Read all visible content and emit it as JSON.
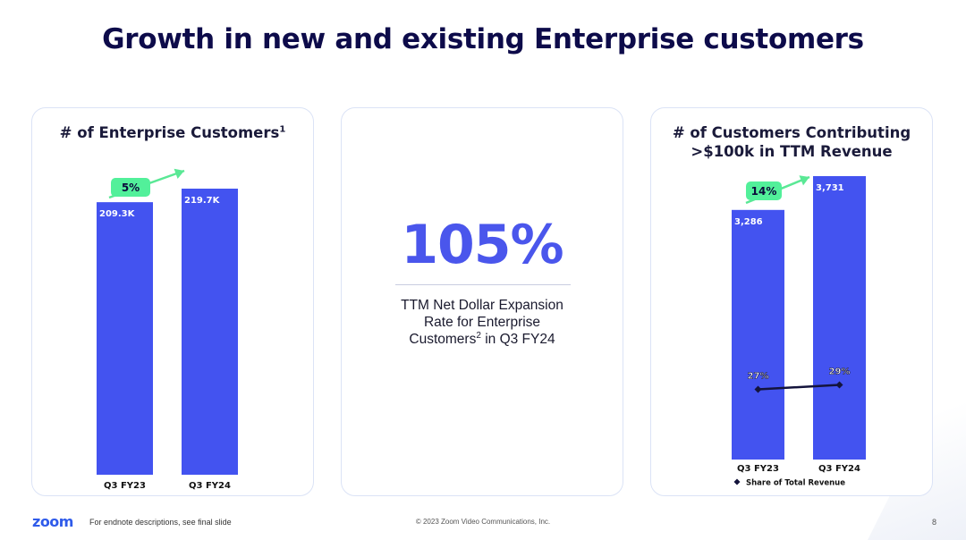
{
  "slide": {
    "title": "Growth in new and existing Enterprise customers",
    "page_number": "8"
  },
  "footer": {
    "logo": "zoom",
    "note": "For endnote descriptions, see final slide",
    "copyright": "© 2023 Zoom Video Communications, Inc."
  },
  "panel1": {
    "title": "# of Enterprise Customers",
    "footnote": "1"
  },
  "panel2": {
    "metric": "105%",
    "label_line1": "TTM Net Dollar Expansion",
    "label_line2": "Rate for Enterprise",
    "label_line3_a": "Customers",
    "label_line3_sup": "2",
    "label_line3_b": " in Q3 FY24"
  },
  "panel3": {
    "title_line1": "# of Customers Contributing",
    "title_line2": ">$100k in TTM Revenue"
  },
  "colors": {
    "bar": "#4353f0",
    "growth_badge": "#52f09a",
    "growth_arrow": "#5ae895",
    "line": "#14143c"
  },
  "chart_data": [
    {
      "type": "bar",
      "title": "# of Enterprise Customers",
      "categories": [
        "Q3 FY23",
        "Q3 FY24"
      ],
      "values": [
        209.3,
        219.7
      ],
      "value_labels": [
        "209.3K",
        "219.7K"
      ],
      "units": "thousands",
      "growth_label": "5%",
      "ylim": [
        0,
        219.7
      ]
    },
    {
      "type": "bar",
      "title": "# of Customers Contributing >$100k in TTM Revenue",
      "categories": [
        "Q3 FY23",
        "Q3 FY24"
      ],
      "values": [
        3286,
        3731
      ],
      "value_labels": [
        "3,286",
        "3,731"
      ],
      "growth_label": "14%",
      "ylim": [
        0,
        3731
      ],
      "overlay_line": {
        "type": "line",
        "name": "Share of Total Revenue",
        "values": [
          27,
          29
        ],
        "value_labels": [
          "27%",
          "29%"
        ],
        "marker": "diamond"
      },
      "legend": "bottom"
    }
  ]
}
